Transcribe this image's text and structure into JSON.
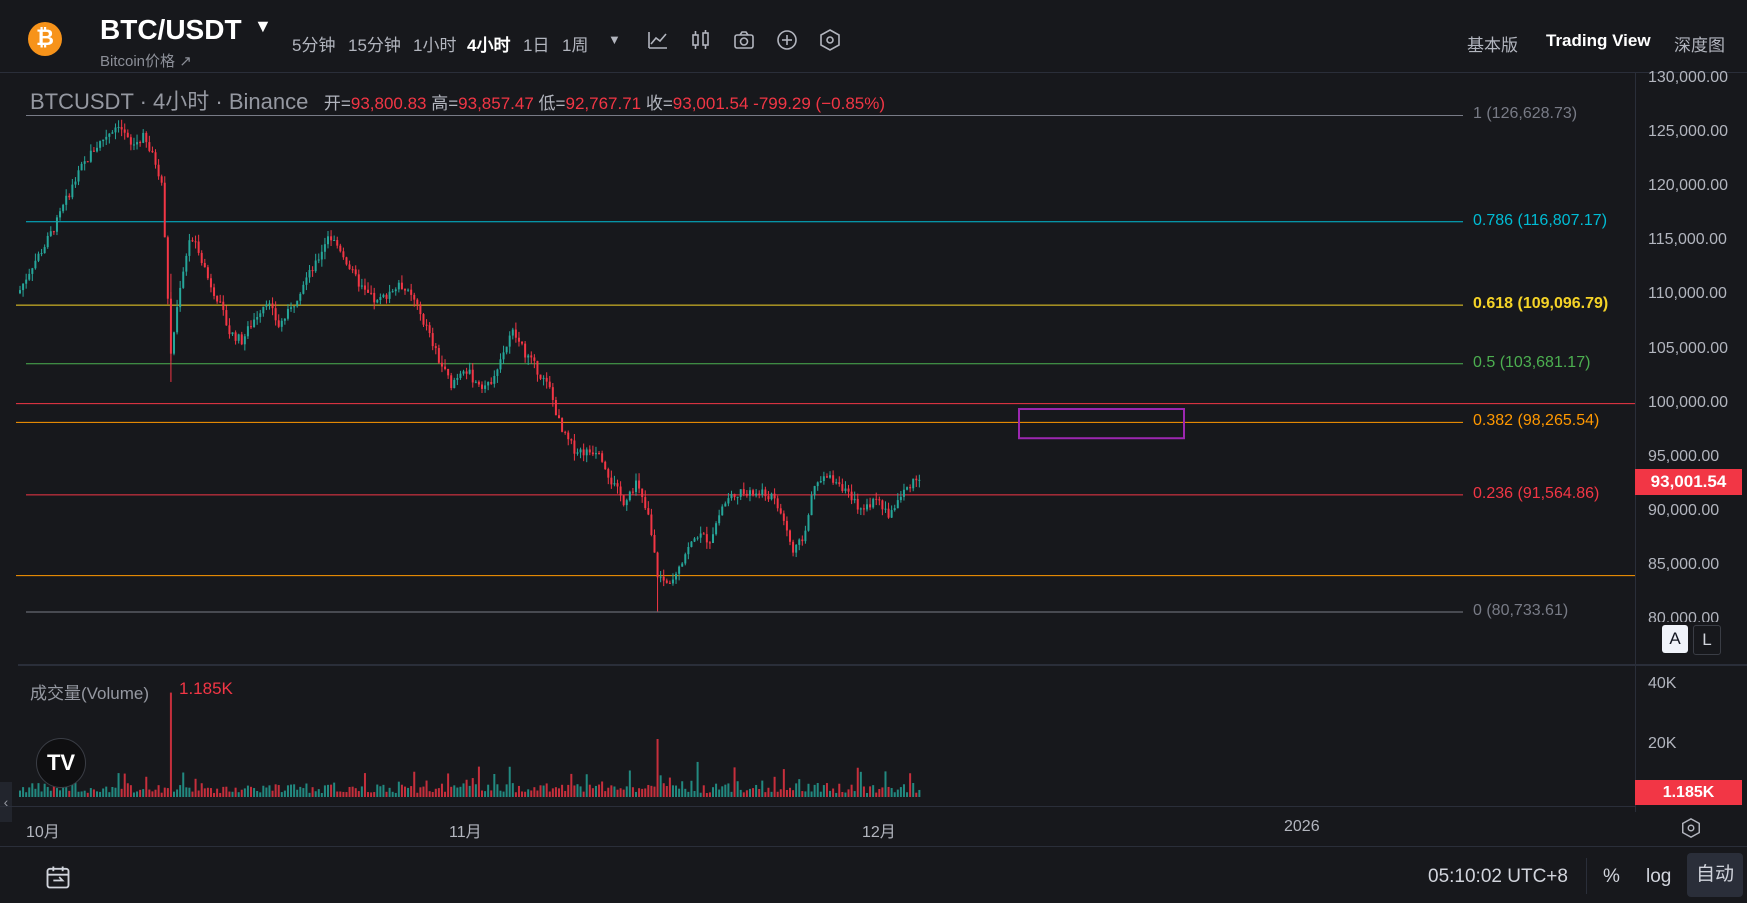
{
  "header": {
    "symbol": "BTC/USDT",
    "subtitle": "Bitcoin价格 ↗",
    "timeframes": [
      "5分钟",
      "15分钟",
      "1小时",
      "4小时",
      "1日",
      "1周"
    ],
    "active_timeframe": "4小时",
    "modes": [
      "基本版",
      "Trading View",
      "深度图"
    ],
    "active_mode": "Trading View",
    "icons": [
      "indicator-icon",
      "candlestick-icon",
      "camera-icon",
      "plus-circle-icon",
      "settings-hex-icon"
    ]
  },
  "legend": {
    "name": "BTCUSDT · 4小时 · Binance",
    "open_label": "开=",
    "open": "93,800.83",
    "high_label": "高=",
    "high": "93,857.47",
    "low_label": "低=",
    "low": "92,767.71",
    "close_label": "收=",
    "close": "93,001.54",
    "change": "-799.29 (−0.85%)"
  },
  "fib_levels": [
    {
      "label": "1 (126,628.73)",
      "price": 126628.73,
      "color": "#787b86"
    },
    {
      "label": "0.786 (116,807.17)",
      "price": 116807.17,
      "color": "#00bcd4"
    },
    {
      "label": "0.618 (109,096.79)",
      "price": 109096.79,
      "color": "#f5d327"
    },
    {
      "label": "0.5 (103,681.17)",
      "price": 103681.17,
      "color": "#4caf50"
    },
    {
      "label": "0.382 (98,265.54)",
      "price": 98265.54,
      "color": "#ff9800"
    },
    {
      "label": "0.236 (91,564.86)",
      "price": 91564.86,
      "color": "#f23645"
    },
    {
      "label": "0 (80,733.61)",
      "price": 80733.61,
      "color": "#787b86"
    }
  ],
  "price_axis": [
    "130,000.00",
    "125,000.00",
    "120,000.00",
    "115,000.00",
    "110,000.00",
    "105,000.00",
    "100,000.00",
    "95,000.00",
    "90,000.00",
    "85,000.00",
    "80,000.00"
  ],
  "current_price": "93,001.54",
  "scale_buttons": {
    "auto": "A",
    "log": "L"
  },
  "volume": {
    "title": "成交量(Volume)",
    "value": "1.185K",
    "axis": [
      "40K",
      "20K"
    ],
    "badge": "1.185K"
  },
  "time_axis": [
    "10月",
    "11月",
    "12月",
    "2026"
  ],
  "footer": {
    "clock": "05:10:02 UTC+8",
    "percent": "%",
    "log": "log",
    "auto": "自动"
  },
  "colors": {
    "up": "#26a69a",
    "down": "#f23645",
    "background": "#17181c",
    "drawing_box": "#9c27b0"
  },
  "chart_data": {
    "type": "candlestick",
    "symbol": "BTCUSDT",
    "interval": "4小时",
    "close_path": [
      [
        0,
        110500
      ],
      [
        4,
        112800
      ],
      [
        8,
        114600
      ],
      [
        12,
        116800
      ],
      [
        16,
        119500
      ],
      [
        20,
        121800
      ],
      [
        24,
        123500
      ],
      [
        28,
        124800
      ],
      [
        32,
        125900
      ],
      [
        36,
        123800
      ],
      [
        40,
        124600
      ],
      [
        44,
        122300
      ],
      [
        46,
        120500
      ],
      [
        49,
        104500
      ],
      [
        52,
        111000
      ],
      [
        55,
        115200
      ],
      [
        58,
        114300
      ],
      [
        61,
        111600
      ],
      [
        64,
        109800
      ],
      [
        68,
        106600
      ],
      [
        72,
        105800
      ],
      [
        76,
        107800
      ],
      [
        80,
        109600
      ],
      [
        84,
        107200
      ],
      [
        88,
        108700
      ],
      [
        92,
        111200
      ],
      [
        96,
        112800
      ],
      [
        100,
        115600
      ],
      [
        104,
        114300
      ],
      [
        108,
        112000
      ],
      [
        112,
        110300
      ],
      [
        116,
        109300
      ],
      [
        120,
        110400
      ],
      [
        124,
        110900
      ],
      [
        128,
        109400
      ],
      [
        132,
        107000
      ],
      [
        136,
        104000
      ],
      [
        140,
        101800
      ],
      [
        144,
        103400
      ],
      [
        148,
        102000
      ],
      [
        152,
        101600
      ],
      [
        156,
        104200
      ],
      [
        160,
        106600
      ],
      [
        164,
        104700
      ],
      [
        168,
        103100
      ],
      [
        172,
        101300
      ],
      [
        176,
        97300
      ],
      [
        180,
        95800
      ],
      [
        184,
        95500
      ],
      [
        188,
        95800
      ],
      [
        192,
        92800
      ],
      [
        196,
        91000
      ],
      [
        200,
        92700
      ],
      [
        204,
        89500
      ],
      [
        207,
        84200
      ],
      [
        210,
        83300
      ],
      [
        213,
        84600
      ],
      [
        216,
        86200
      ],
      [
        220,
        87900
      ],
      [
        224,
        87400
      ],
      [
        228,
        90500
      ],
      [
        232,
        91800
      ],
      [
        236,
        91600
      ],
      [
        240,
        91700
      ],
      [
        244,
        91400
      ],
      [
        248,
        89300
      ],
      [
        251,
        86200
      ],
      [
        254,
        87400
      ],
      [
        258,
        92300
      ],
      [
        262,
        93200
      ],
      [
        266,
        92800
      ],
      [
        270,
        91000
      ],
      [
        274,
        90200
      ],
      [
        278,
        91200
      ],
      [
        282,
        89700
      ],
      [
        286,
        91400
      ],
      [
        290,
        93000
      ],
      [
        292,
        93001.54
      ]
    ],
    "volume_peaks": [
      {
        "x": 49,
        "value": 36000
      },
      {
        "x": 207,
        "value": 20000
      }
    ]
  }
}
